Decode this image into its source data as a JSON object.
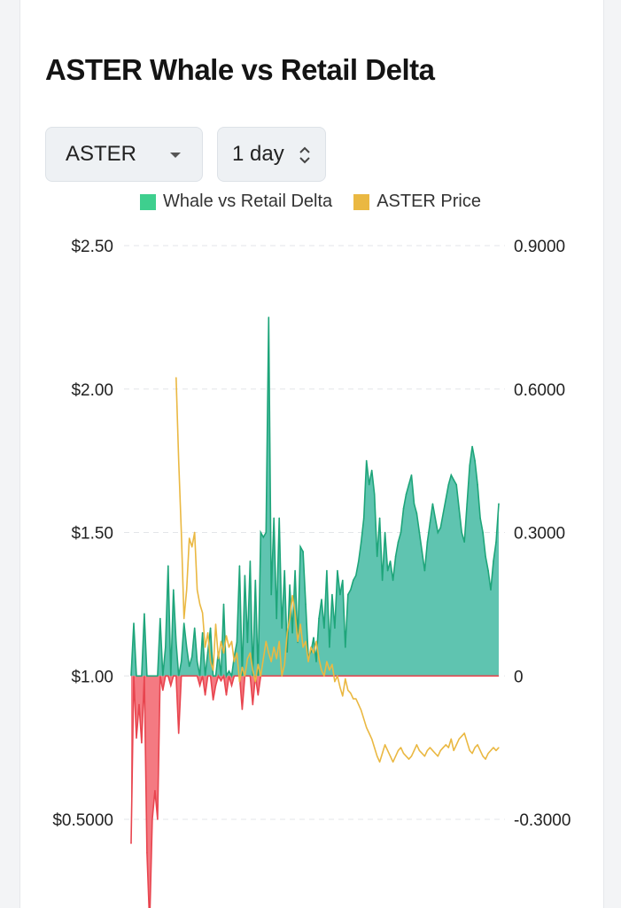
{
  "title": "ASTER Whale vs Retail Delta",
  "controls": {
    "token": "ASTER",
    "interval": "1 day"
  },
  "legend": [
    {
      "label": "Whale vs Retail Delta",
      "color": "#3ecf8e"
    },
    {
      "label": "ASTER Price",
      "color": "#eab842"
    }
  ],
  "icons": {
    "token_caret": "chevron-down-icon",
    "interval_updown": "up-down-chevron-icon"
  },
  "chart_data": {
    "type": "area",
    "series": [
      {
        "name": "Whale vs Retail Delta",
        "axis": "right",
        "positive_color": "#5fc4b0",
        "negative_color": "#f47a82",
        "x": [
          0,
          1,
          2,
          3,
          4,
          5,
          6,
          7,
          8,
          9,
          10,
          11,
          12,
          13,
          14,
          15,
          16,
          17,
          18,
          19,
          20,
          21,
          22,
          23,
          24,
          25,
          26,
          27,
          28,
          29,
          30,
          31,
          32,
          33,
          34,
          35,
          36,
          37,
          38,
          39,
          40,
          41,
          42,
          43,
          44,
          45,
          46,
          47,
          48,
          49,
          50,
          51,
          52,
          53,
          54,
          55,
          56,
          57,
          58,
          59,
          60,
          61,
          62,
          63,
          64,
          65,
          66,
          67,
          68,
          69,
          70,
          71,
          72,
          73,
          74,
          75,
          76,
          77,
          78,
          79,
          80,
          81,
          82,
          83,
          84,
          85,
          86,
          87,
          88,
          89,
          90,
          91,
          92,
          93,
          94,
          95,
          96,
          97,
          98,
          99,
          100,
          101,
          102,
          103,
          104,
          105,
          106,
          107,
          108,
          109,
          110,
          111,
          112,
          113,
          114,
          115,
          116,
          117,
          118,
          119,
          120,
          121,
          122,
          123,
          124,
          125,
          126,
          127,
          128,
          129,
          130,
          131,
          132,
          133,
          134,
          135,
          136,
          137,
          138,
          139
        ],
        "values": [
          -0.35,
          0.11,
          -0.13,
          -0.06,
          -0.14,
          0.13,
          -0.37,
          -0.52,
          -0.3,
          -0.24,
          -0.3,
          0.12,
          -0.03,
          0.06,
          0.23,
          -0.02,
          0.18,
          0.07,
          -0.12,
          0.03,
          0.11,
          0.06,
          0.02,
          0.04,
          0.1,
          0.03,
          -0.02,
          0.09,
          -0.04,
          0.05,
          0.1,
          -0.05,
          -0.02,
          0.05,
          -0.01,
          0.15,
          -0.04,
          0.01,
          -0.02,
          0.04,
          0.07,
          0.23,
          -0.07,
          0.21,
          0.07,
          0.24,
          -0.06,
          0.2,
          -0.04,
          0.3,
          0.29,
          0.3,
          0.75,
          0.17,
          0.33,
          0.12,
          0.33,
          0.1,
          0.22,
          0.05,
          0.19,
          0.09,
          0.22,
          0.07,
          0.27,
          0.26,
          0.15,
          0.04,
          0.05,
          0.08,
          0.03,
          0.12,
          0.16,
          0.1,
          0.22,
          0.06,
          0.17,
          0.1,
          0.22,
          0.17,
          0.2,
          0.06,
          0.17,
          0.18,
          0.2,
          0.21,
          0.24,
          0.28,
          0.33,
          0.45,
          0.4,
          0.43,
          0.38,
          0.25,
          0.33,
          0.2,
          0.3,
          0.22,
          0.24,
          0.2,
          0.25,
          0.28,
          0.3,
          0.35,
          0.38,
          0.4,
          0.42,
          0.36,
          0.34,
          0.3,
          0.26,
          0.22,
          0.28,
          0.32,
          0.36,
          0.33,
          0.3,
          0.31,
          0.34,
          0.37,
          0.4,
          0.42,
          0.41,
          0.4,
          0.35,
          0.3,
          0.28,
          0.36,
          0.44,
          0.48,
          0.45,
          0.4,
          0.33,
          0.3,
          0.25,
          0.22,
          0.18,
          0.24,
          0.28,
          0.36
        ]
      },
      {
        "name": "ASTER Price",
        "axis": "left",
        "color": "#eab842",
        "x": [
          17,
          18,
          19,
          20,
          21,
          22,
          23,
          24,
          25,
          26,
          27,
          28,
          29,
          30,
          31,
          32,
          33,
          34,
          35,
          36,
          37,
          38,
          39,
          40,
          41,
          42,
          43,
          44,
          45,
          46,
          47,
          48,
          49,
          50,
          51,
          52,
          53,
          54,
          55,
          56,
          57,
          58,
          59,
          60,
          61,
          62,
          63,
          64,
          65,
          66,
          67,
          68,
          69,
          70,
          71,
          72,
          73,
          74,
          75,
          76,
          77,
          78,
          79,
          80,
          81,
          82,
          83,
          84,
          85,
          86,
          87,
          88,
          89,
          90,
          91,
          92,
          93,
          94,
          95,
          96,
          97,
          98,
          99,
          100,
          101,
          102,
          103,
          104,
          105,
          106,
          107,
          108,
          109,
          110,
          111,
          112,
          113,
          114,
          115,
          116,
          117,
          118,
          119,
          120,
          121,
          122,
          123,
          124,
          125,
          126,
          127,
          128,
          129,
          130,
          131,
          132,
          133,
          134,
          135,
          136,
          137,
          138,
          139
        ],
        "values": [
          2.04,
          1.75,
          1.5,
          1.2,
          1.3,
          1.48,
          1.45,
          1.5,
          1.3,
          1.25,
          1.22,
          1.1,
          1.15,
          1.05,
          1.02,
          1.18,
          1.06,
          1.12,
          1.08,
          1.14,
          1.1,
          1.12,
          1.05,
          1.08,
          0.98,
          1.03,
          1.0,
          1.06,
          1.08,
          1.02,
          0.98,
          1.04,
          1.0,
          1.06,
          1.12,
          1.08,
          1.05,
          1.1,
          1.06,
          1.12,
          1.0,
          1.04,
          1.15,
          1.2,
          1.28,
          1.22,
          1.12,
          1.18,
          1.1,
          1.12,
          1.05,
          1.1,
          1.08,
          1.12,
          1.06,
          1.02,
          1.0,
          1.05,
          1.02,
          1.04,
          0.98,
          1.0,
          0.96,
          0.93,
          0.99,
          0.95,
          0.94,
          0.92,
          0.92,
          0.9,
          0.88,
          0.85,
          0.82,
          0.8,
          0.78,
          0.75,
          0.72,
          0.7,
          0.73,
          0.76,
          0.74,
          0.72,
          0.7,
          0.72,
          0.74,
          0.75,
          0.73,
          0.72,
          0.71,
          0.72,
          0.74,
          0.76,
          0.74,
          0.73,
          0.72,
          0.74,
          0.75,
          0.74,
          0.73,
          0.72,
          0.74,
          0.75,
          0.76,
          0.75,
          0.78,
          0.74,
          0.76,
          0.78,
          0.79,
          0.8,
          0.77,
          0.74,
          0.73,
          0.75,
          0.76,
          0.74,
          0.72,
          0.71,
          0.73,
          0.74,
          0.75,
          0.74,
          0.75
        ]
      }
    ],
    "left_axis": {
      "ticks": [
        "$2.50",
        "$2.00",
        "$1.50",
        "$1.00",
        "$0.5000"
      ],
      "range": [
        0.25,
        2.5
      ]
    },
    "right_axis": {
      "ticks": [
        "0.9000",
        "0.6000",
        "0.3000",
        "0",
        "-0.3000"
      ],
      "range": [
        -0.45,
        0.9
      ]
    },
    "grid": true,
    "legend_position": "top-center"
  }
}
